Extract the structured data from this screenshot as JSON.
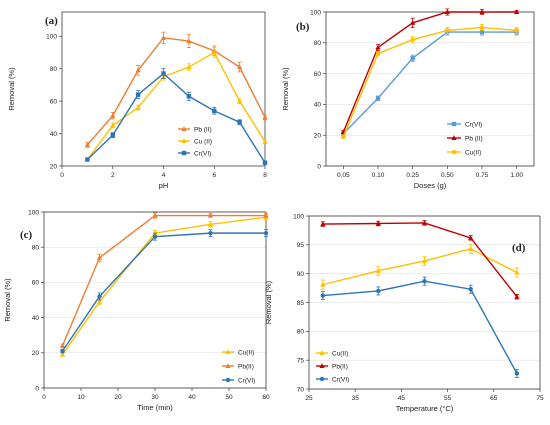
{
  "chart_data": [
    {
      "id": "a",
      "panel_label": "(a)",
      "type": "line",
      "xlabel": "pH",
      "ylabel": "Removal (%)",
      "xlim": [
        0,
        8
      ],
      "ylim": [
        20,
        110
      ],
      "xticks": [
        "0",
        "2",
        "4",
        "6",
        "8"
      ],
      "yticks": [
        "20",
        "40",
        "60",
        "80",
        "100"
      ],
      "grid": false,
      "legend_position": "bottom-right",
      "x": [
        1,
        2,
        3,
        4,
        5,
        6,
        7,
        8
      ],
      "series": [
        {
          "name": "Pb (II)",
          "color": "#ED7D31",
          "marker": "triangle",
          "values": [
            33,
            51,
            79,
            99,
            97,
            91,
            81,
            50
          ],
          "errors": [
            1.5,
            2,
            3,
            3.5,
            4,
            3,
            3,
            1.5
          ]
        },
        {
          "name": "Cu (II)",
          "color": "#FFC000",
          "marker": "triangle",
          "values": [
            24,
            45,
            56,
            75,
            81,
            90,
            60,
            35
          ],
          "errors": [
            1,
            1.5,
            1.5,
            2,
            2,
            3,
            1.5,
            1
          ]
        },
        {
          "name": "Cr(VI)",
          "color": "#2E75B6",
          "marker": "square",
          "values": [
            24,
            39,
            64,
            77,
            63,
            54,
            47,
            22
          ],
          "errors": [
            1,
            1.5,
            2.5,
            3,
            2.5,
            2,
            1.5,
            1
          ]
        }
      ]
    },
    {
      "id": "b",
      "panel_label": "(b)",
      "type": "line",
      "xlabel": "Doses (g)",
      "ylabel": "Removal (%)",
      "ylim": [
        0,
        100
      ],
      "categories": [
        "0.05",
        "0.10",
        "0.25",
        "0.50",
        "0.75",
        "1.00"
      ],
      "yticks": [
        "0",
        "20",
        "40",
        "60",
        "80",
        "100"
      ],
      "grid": true,
      "legend_position": "right",
      "series": [
        {
          "name": "Cr(VI)",
          "color": "#5B9BD5",
          "marker": "square",
          "values": [
            21,
            44,
            70,
            87,
            87,
            87
          ],
          "errors": [
            1,
            1.5,
            2,
            2,
            2,
            2
          ]
        },
        {
          "name": "Pb (II)",
          "color": "#C00000",
          "marker": "triangle",
          "values": [
            22,
            77,
            93,
            100,
            100,
            100
          ],
          "errors": [
            1,
            2,
            3,
            2,
            1.5,
            1
          ]
        },
        {
          "name": "Cu(II)",
          "color": "#FFC000",
          "marker": "circle",
          "values": [
            19,
            73,
            82,
            88,
            90,
            88
          ],
          "errors": [
            1,
            1.5,
            2,
            2,
            2,
            2
          ]
        }
      ]
    },
    {
      "id": "c",
      "panel_label": "(c)",
      "type": "line",
      "xlabel": "Time  (min)",
      "ylabel": "Removal (%)",
      "xlim": [
        0,
        60
      ],
      "ylim": [
        0,
        100
      ],
      "xticks": [
        "0",
        "10",
        "20",
        "30",
        "40",
        "50",
        "60"
      ],
      "yticks": [
        "0",
        "20",
        "40",
        "60",
        "80",
        "100"
      ],
      "grid": true,
      "legend_position": "bottom-right",
      "x": [
        5,
        15,
        30,
        45,
        60
      ],
      "series": [
        {
          "name": "Cu(II)",
          "color": "#FFC000",
          "marker": "triangle",
          "values": [
            19,
            49,
            88,
            93,
            97
          ],
          "errors": [
            1,
            1.5,
            1.5,
            1.5,
            1.5
          ]
        },
        {
          "name": "Pb(II)",
          "color": "#ED7D31",
          "marker": "triangle",
          "values": [
            24,
            74,
            98,
            98,
            98
          ],
          "errors": [
            1,
            2,
            1.5,
            1,
            1
          ]
        },
        {
          "name": "Cr(VI)",
          "color": "#2E75B6",
          "marker": "circle",
          "values": [
            21,
            52,
            86,
            88,
            88
          ],
          "errors": [
            1,
            2,
            2,
            2,
            2
          ]
        }
      ]
    },
    {
      "id": "d",
      "panel_label": "(d)",
      "type": "line",
      "xlabel": "Temperature (°C)",
      "ylabel": "Removal (%)",
      "xlim": [
        25,
        75
      ],
      "ylim": [
        70,
        100
      ],
      "xticks": [
        "25",
        "35",
        "45",
        "55",
        "65",
        "75"
      ],
      "yticks": [
        "70",
        "75",
        "80",
        "85",
        "90",
        "95",
        "100"
      ],
      "grid": true,
      "legend_position": "bottom-left",
      "x": [
        28,
        40,
        50,
        60,
        70
      ],
      "series": [
        {
          "name": "Cu(II)",
          "color": "#FFC000",
          "marker": "triangle",
          "values": [
            88.1,
            90.5,
            92.2,
            94.3,
            90.2
          ],
          "errors": [
            0.8,
            0.8,
            0.8,
            0.8,
            0.8
          ]
        },
        {
          "name": "Pb(II)",
          "color": "#C00000",
          "marker": "triangle",
          "values": [
            98.6,
            98.7,
            98.8,
            96.2,
            86.0
          ],
          "errors": [
            0.4,
            0.4,
            0.4,
            0.4,
            0.4
          ]
        },
        {
          "name": "Cr(VI)",
          "color": "#2E75B6",
          "marker": "circle",
          "values": [
            86.2,
            87.0,
            88.7,
            87.3,
            72.7
          ],
          "errors": [
            0.7,
            0.7,
            0.7,
            0.7,
            0.7
          ]
        }
      ]
    }
  ]
}
